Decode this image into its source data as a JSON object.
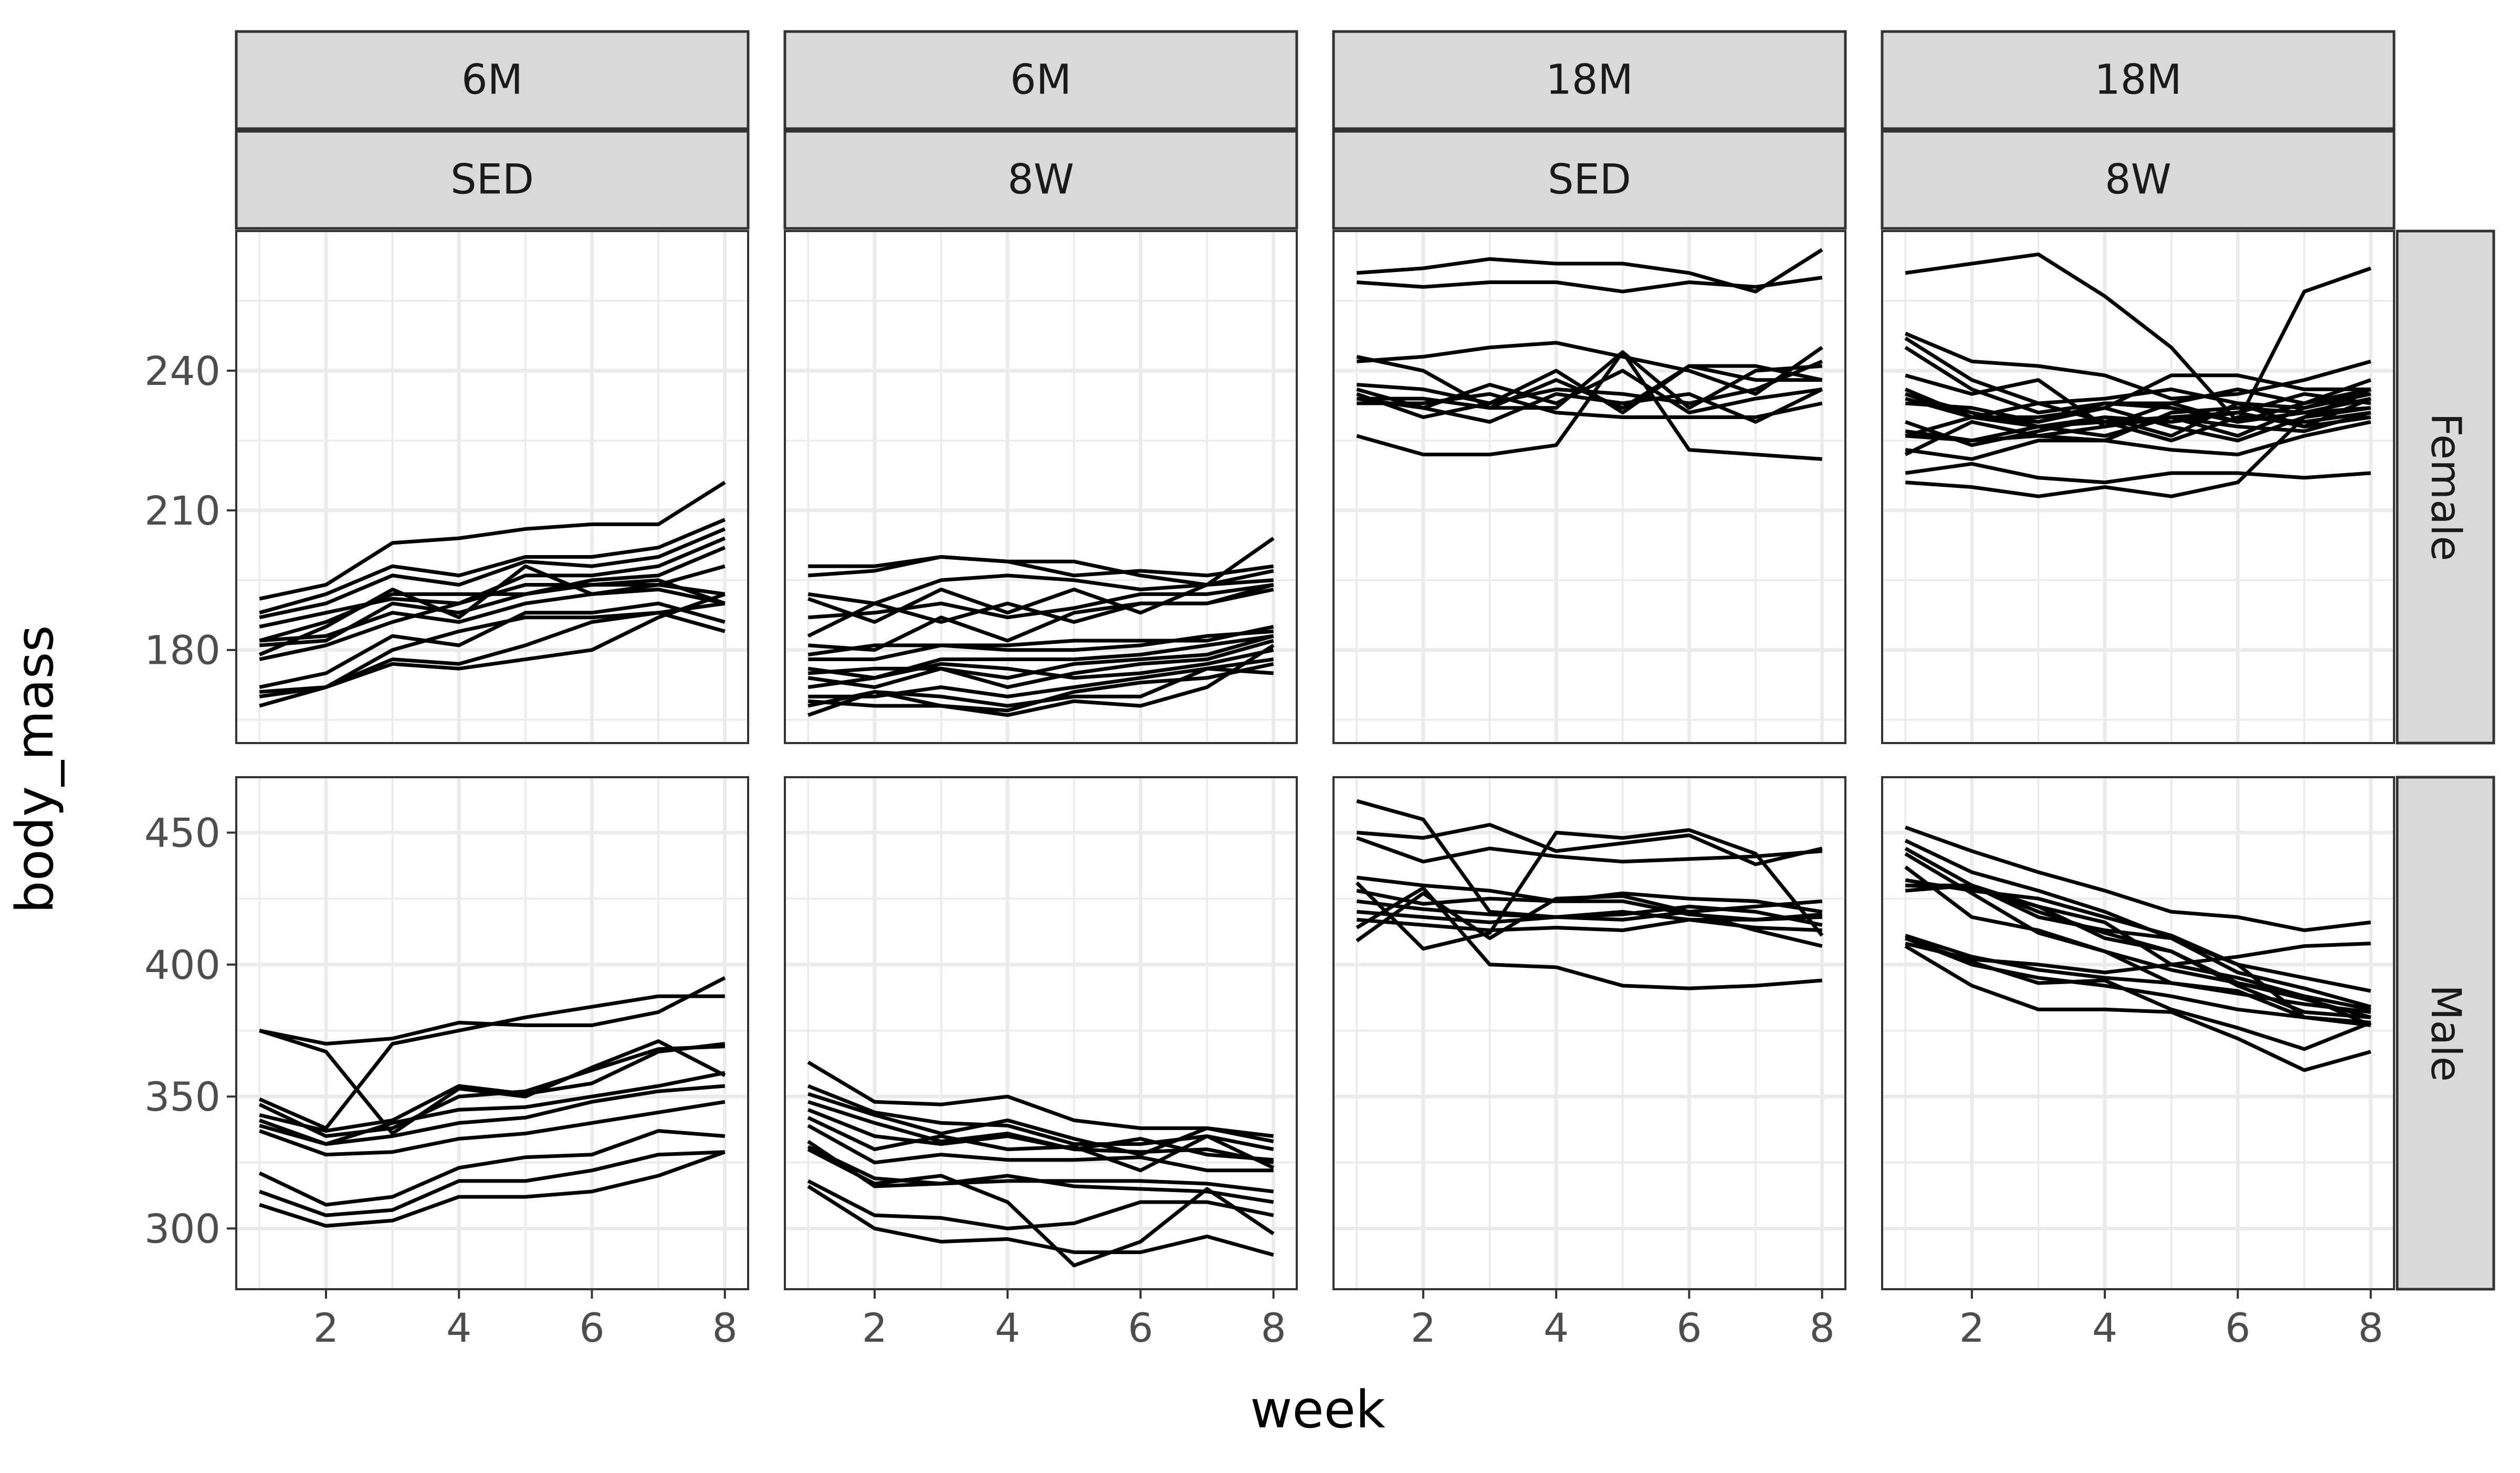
{
  "chart_data": {
    "type": "line",
    "xlabel": "week",
    "ylabel": "body_mass",
    "x": [
      1,
      2,
      3,
      4,
      5,
      6,
      7,
      8
    ],
    "xlim": [
      0.65,
      8.35
    ],
    "x_ticks": [
      2,
      4,
      6,
      8
    ],
    "facet_columns": [
      {
        "age": "6M",
        "group": "SED"
      },
      {
        "age": "6M",
        "group": "8W"
      },
      {
        "age": "18M",
        "group": "SED"
      },
      {
        "age": "18M",
        "group": "8W"
      }
    ],
    "facet_rows": [
      {
        "sex": "Female",
        "ylim": [
          160,
          270
        ],
        "y_ticks": [
          180,
          210,
          240
        ],
        "y_minor": [
          165,
          195,
          225,
          255
        ]
      },
      {
        "sex": "Male",
        "ylim": [
          277,
          471
        ],
        "y_ticks": [
          300,
          350,
          400,
          450
        ],
        "y_minor": [
          325,
          375,
          425
        ]
      }
    ],
    "panels": [
      {
        "row": 0,
        "col": 0,
        "series": [
          [
            191,
            194,
            203,
            204,
            206,
            207,
            207,
            216
          ],
          [
            188,
            192,
            198,
            196,
            200,
            200,
            202,
            208
          ],
          [
            187,
            190,
            196,
            194,
            199,
            198,
            200,
            206
          ],
          [
            185,
            188,
            191,
            190,
            196,
            196,
            198,
            204
          ],
          [
            182,
            186,
            192,
            192,
            192,
            195,
            196,
            202
          ],
          [
            182,
            183,
            188,
            186,
            190,
            192,
            194,
            198
          ],
          [
            181,
            182,
            190,
            188,
            192,
            194,
            194,
            192
          ],
          [
            179,
            185,
            193,
            187,
            198,
            192,
            193,
            190
          ],
          [
            178,
            181,
            186,
            190,
            194,
            194,
            195,
            190
          ],
          [
            172,
            175,
            183,
            181,
            188,
            188,
            190,
            186
          ],
          [
            171,
            172,
            180,
            184,
            187,
            187,
            188,
            184
          ],
          [
            170,
            172,
            177,
            176,
            178,
            180,
            187,
            192
          ],
          [
            168,
            172,
            178,
            177,
            181,
            186,
            188,
            190
          ]
        ]
      },
      {
        "row": 0,
        "col": 1,
        "series": [
          [
            198,
            198,
            200,
            199,
            199,
            196,
            194,
            204
          ],
          [
            196,
            197,
            200,
            199,
            196,
            197,
            196,
            198
          ],
          [
            192,
            190,
            195,
            196,
            195,
            193,
            194,
            197
          ],
          [
            191,
            186,
            193,
            188,
            193,
            188,
            194,
            195
          ],
          [
            187,
            188,
            190,
            187,
            189,
            192,
            192,
            194
          ],
          [
            183,
            190,
            186,
            190,
            186,
            190,
            190,
            193
          ],
          [
            181,
            180,
            187,
            182,
            188,
            190,
            190,
            194
          ],
          [
            179,
            181,
            181,
            181,
            182,
            182,
            182,
            185
          ],
          [
            178,
            178,
            181,
            180,
            180,
            181,
            183,
            184
          ],
          [
            176,
            174,
            178,
            178,
            178,
            179,
            181,
            183
          ],
          [
            175,
            176,
            176,
            174,
            177,
            178,
            179,
            183
          ],
          [
            174,
            172,
            176,
            172,
            175,
            177,
            178,
            182
          ],
          [
            172,
            174,
            177,
            176,
            174,
            175,
            177,
            180
          ],
          [
            170,
            170,
            172,
            170,
            172,
            174,
            176,
            178
          ],
          [
            169,
            168,
            168,
            167,
            171,
            173,
            174,
            177
          ],
          [
            168,
            171,
            170,
            168,
            170,
            170,
            176,
            175
          ],
          [
            166,
            171,
            168,
            166,
            169,
            168,
            172,
            181
          ]
        ]
      },
      {
        "row": 0,
        "col": 2,
        "series": [
          [
            261,
            262,
            264,
            263,
            263,
            261,
            257,
            266
          ],
          [
            259,
            258,
            259,
            259,
            257,
            259,
            258,
            260
          ],
          [
            243,
            240,
            232,
            238,
            232,
            241,
            241,
            238
          ],
          [
            242,
            243,
            245,
            246,
            243,
            240,
            235,
            245
          ],
          [
            237,
            236,
            233,
            236,
            235,
            233,
            236,
            242
          ],
          [
            236,
            232,
            237,
            233,
            240,
            231,
            234,
            236
          ],
          [
            235,
            230,
            233,
            240,
            231,
            241,
            238,
            238
          ],
          [
            234,
            234,
            232,
            232,
            244,
            232,
            240,
            241
          ],
          [
            234,
            232,
            229,
            235,
            233,
            235,
            229,
            236
          ],
          [
            233,
            233,
            235,
            231,
            230,
            230,
            230,
            233
          ],
          [
            226,
            222,
            222,
            224,
            244,
            223,
            222,
            221
          ]
        ]
      },
      {
        "row": 0,
        "col": 3,
        "series": [
          [
            261,
            263,
            265,
            256,
            245,
            229,
            257,
            262
          ],
          [
            248,
            242,
            241,
            239,
            234,
            235,
            238,
            242
          ],
          [
            247,
            238,
            233,
            234,
            236,
            233,
            232,
            236
          ],
          [
            245,
            236,
            231,
            233,
            232,
            229,
            233,
            236
          ],
          [
            239,
            235,
            238,
            228,
            233,
            236,
            233,
            238
          ],
          [
            236,
            230,
            229,
            232,
            239,
            239,
            236,
            236
          ],
          [
            235,
            231,
            228,
            230,
            226,
            233,
            228,
            234
          ],
          [
            235,
            230,
            228,
            229,
            230,
            231,
            235,
            233
          ],
          [
            234,
            230,
            230,
            232,
            228,
            225,
            230,
            232
          ],
          [
            233,
            232,
            229,
            233,
            233,
            229,
            231,
            234
          ],
          [
            229,
            224,
            227,
            230,
            229,
            231,
            228,
            230
          ],
          [
            227,
            225,
            228,
            226,
            230,
            228,
            227,
            231
          ],
          [
            226,
            230,
            233,
            229,
            225,
            230,
            229,
            231
          ],
          [
            226,
            225,
            226,
            228,
            230,
            226,
            232,
            235
          ],
          [
            223,
            221,
            225,
            225,
            223,
            222,
            226,
            229
          ],
          [
            222,
            229,
            226,
            225,
            231,
            232,
            231,
            232
          ],
          [
            218,
            220,
            217,
            216,
            218,
            218,
            217,
            218
          ],
          [
            216,
            215,
            213,
            215,
            213,
            216,
            230,
            236
          ]
        ]
      },
      {
        "row": 1,
        "col": 0,
        "series": [
          [
            375,
            370,
            372,
            378,
            377,
            377,
            382,
            395
          ],
          [
            375,
            367,
            336,
            353,
            350,
            361,
            371,
            358
          ],
          [
            349,
            338,
            370,
            375,
            380,
            384,
            388,
            388
          ],
          [
            347,
            335,
            338,
            350,
            352,
            360,
            368,
            369
          ],
          [
            343,
            337,
            341,
            354,
            351,
            355,
            367,
            370
          ],
          [
            341,
            332,
            340,
            345,
            346,
            350,
            354,
            359
          ],
          [
            339,
            332,
            335,
            340,
            342,
            348,
            352,
            354
          ],
          [
            337,
            328,
            329,
            334,
            336,
            340,
            344,
            348
          ],
          [
            321,
            309,
            312,
            323,
            327,
            328,
            337,
            335
          ],
          [
            314,
            305,
            307,
            318,
            318,
            322,
            328,
            329
          ],
          [
            309,
            301,
            303,
            312,
            312,
            314,
            320,
            329
          ]
        ]
      },
      {
        "row": 1,
        "col": 1,
        "series": [
          [
            363,
            348,
            347,
            350,
            341,
            338,
            338,
            335
          ],
          [
            354,
            344,
            340,
            339,
            332,
            332,
            335,
            330
          ],
          [
            351,
            343,
            336,
            341,
            334,
            328,
            338,
            333
          ],
          [
            348,
            340,
            333,
            336,
            330,
            329,
            330,
            325
          ],
          [
            345,
            335,
            332,
            335,
            330,
            334,
            328,
            326
          ],
          [
            342,
            330,
            335,
            330,
            331,
            322,
            335,
            323
          ],
          [
            339,
            325,
            328,
            326,
            326,
            327,
            322,
            322
          ],
          [
            333,
            316,
            317,
            320,
            316,
            315,
            314,
            310
          ],
          [
            331,
            319,
            317,
            318,
            318,
            318,
            317,
            314
          ],
          [
            330,
            317,
            320,
            310,
            286,
            295,
            315,
            298
          ],
          [
            318,
            305,
            304,
            300,
            302,
            310,
            310,
            305
          ],
          [
            316,
            300,
            295,
            296,
            291,
            291,
            297,
            290
          ]
        ]
      },
      {
        "row": 1,
        "col": 2,
        "series": [
          [
            462,
            455,
            420,
            418,
            419,
            422,
            420,
            415
          ],
          [
            450,
            448,
            453,
            443,
            446,
            449,
            438,
            444
          ],
          [
            448,
            439,
            444,
            441,
            439,
            440,
            441,
            443
          ],
          [
            433,
            430,
            428,
            424,
            427,
            425,
            424,
            420
          ],
          [
            431,
            406,
            412,
            450,
            448,
            451,
            442,
            411
          ],
          [
            428,
            423,
            425,
            424,
            424,
            419,
            417,
            419
          ],
          [
            424,
            421,
            419,
            418,
            420,
            417,
            417,
            418
          ],
          [
            420,
            418,
            416,
            418,
            417,
            420,
            422,
            424
          ],
          [
            417,
            415,
            413,
            414,
            413,
            417,
            414,
            413
          ],
          [
            414,
            429,
            400,
            399,
            392,
            391,
            392,
            394
          ],
          [
            409,
            427,
            410,
            425,
            426,
            420,
            413,
            407
          ]
        ]
      },
      {
        "row": 1,
        "col": 3,
        "series": [
          [
            452,
            443,
            435,
            428,
            420,
            418,
            413,
            416
          ],
          [
            447,
            435,
            428,
            420,
            410,
            400,
            395,
            390
          ],
          [
            444,
            430,
            418,
            413,
            410,
            397,
            391,
            384
          ],
          [
            442,
            427,
            412,
            405,
            398,
            393,
            388,
            383
          ],
          [
            437,
            418,
            413,
            405,
            393,
            389,
            385,
            382
          ],
          [
            432,
            428,
            425,
            418,
            411,
            400,
            380,
            377
          ],
          [
            430,
            429,
            422,
            416,
            400,
            395,
            388,
            377
          ],
          [
            430,
            430,
            420,
            412,
            405,
            392,
            382,
            380
          ],
          [
            428,
            430,
            422,
            410,
            405,
            393,
            387,
            380
          ],
          [
            411,
            403,
            398,
            395,
            393,
            390,
            380,
            378
          ],
          [
            410,
            400,
            395,
            392,
            388,
            383,
            380,
            378
          ],
          [
            410,
            401,
            393,
            394,
            383,
            376,
            368,
            378
          ],
          [
            408,
            402,
            400,
            397,
            400,
            403,
            407,
            408
          ],
          [
            407,
            392,
            383,
            383,
            382,
            372,
            360,
            367
          ]
        ]
      }
    ]
  }
}
